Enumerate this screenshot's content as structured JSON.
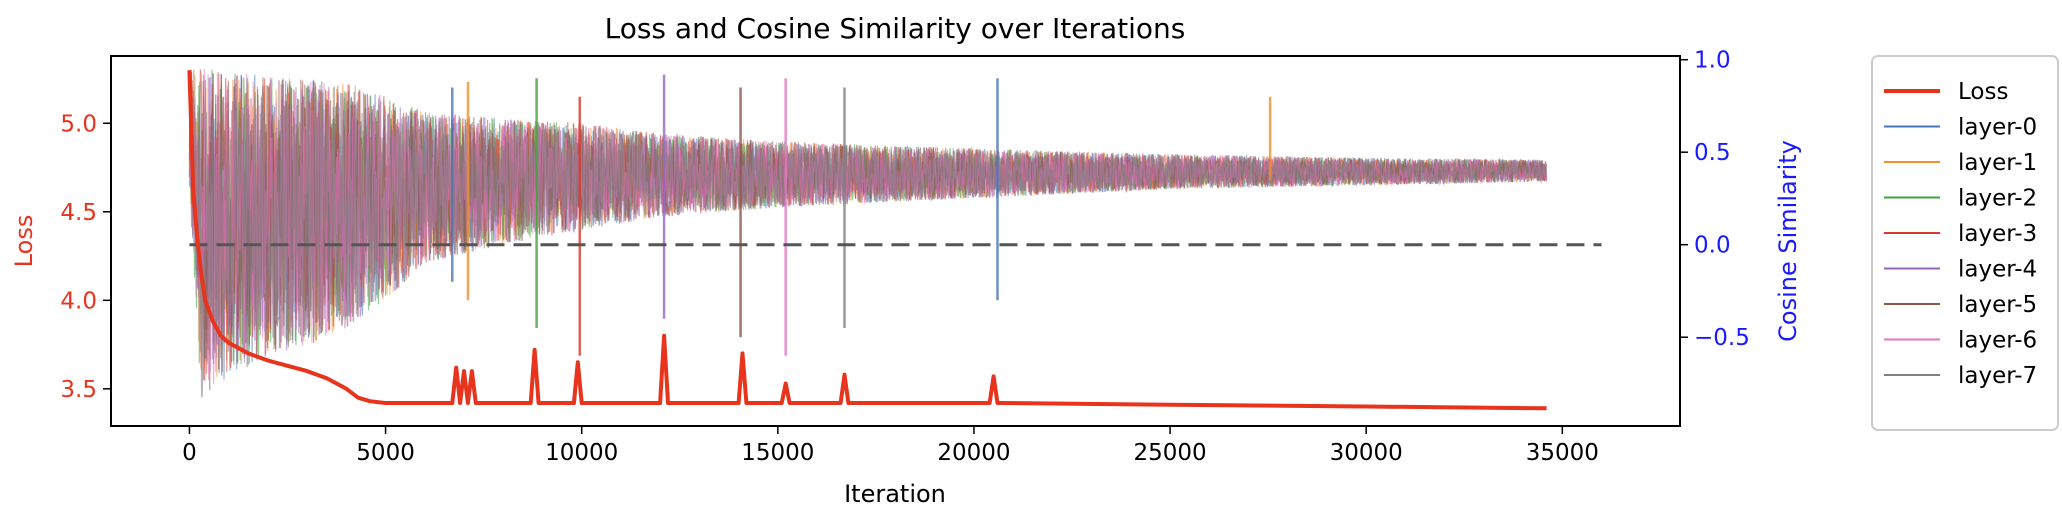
{
  "chart_data": {
    "type": "line",
    "title": "Loss and Cosine Similarity over Iterations",
    "xlabel": "Iteration",
    "ylabel_left": "Loss",
    "ylabel_right": "Cosine Similarity",
    "xlim": [
      -2000,
      38000
    ],
    "ylim_left": [
      3.29,
      5.38
    ],
    "ylim_right": [
      -0.98,
      1.02
    ],
    "x_ticks": [
      0,
      5000,
      10000,
      15000,
      20000,
      25000,
      30000,
      35000
    ],
    "x_tick_labels": [
      "0",
      "5000",
      "10000",
      "15000",
      "20000",
      "25000",
      "30000",
      "35000"
    ],
    "y_left_ticks": [
      3.5,
      4.0,
      4.5,
      5.0
    ],
    "y_left_tick_labels": [
      "3.5",
      "4.0",
      "4.5",
      "5.0"
    ],
    "y_right_ticks": [
      -0.5,
      0.0,
      0.5,
      1.0
    ],
    "y_right_tick_labels": [
      "−0.5",
      "0.0",
      "0.5",
      "1.0"
    ],
    "reference_line": {
      "axis": "right",
      "y": 0.0,
      "x_range": [
        0,
        36000
      ],
      "style": "dashed",
      "color": "#555555"
    },
    "legend_position": "outside-right",
    "series": [
      {
        "name": "Loss",
        "axis": "left",
        "color": "#e8341c",
        "x": [
          0,
          100,
          200,
          300,
          400,
          600,
          800,
          1000,
          1500,
          2000,
          2500,
          3000,
          3500,
          4000,
          4300,
          4600,
          5000,
          6000,
          6700,
          6800,
          6900,
          7000,
          7100,
          7200,
          7300,
          8000,
          8700,
          8800,
          8900,
          9000,
          9800,
          9900,
          10000,
          10100,
          12000,
          12100,
          12200,
          12300,
          14000,
          14100,
          14200,
          14300,
          15100,
          15200,
          15300,
          16600,
          16700,
          16800,
          20400,
          20500,
          20600,
          20700,
          25000,
          30000,
          34600
        ],
        "values": [
          5.3,
          4.6,
          4.35,
          4.15,
          4.0,
          3.88,
          3.8,
          3.76,
          3.7,
          3.66,
          3.63,
          3.6,
          3.56,
          3.5,
          3.45,
          3.43,
          3.42,
          3.42,
          3.42,
          3.62,
          3.42,
          3.6,
          3.42,
          3.6,
          3.42,
          3.42,
          3.42,
          3.72,
          3.42,
          3.42,
          3.42,
          3.65,
          3.42,
          3.42,
          3.42,
          3.8,
          3.42,
          3.42,
          3.42,
          3.7,
          3.42,
          3.42,
          3.42,
          3.53,
          3.42,
          3.42,
          3.58,
          3.42,
          3.42,
          3.57,
          3.42,
          3.42,
          3.41,
          3.4,
          3.39
        ]
      },
      {
        "name": "layer-0",
        "axis": "right",
        "color": "#4a76b7",
        "x": [
          0,
          300,
          600,
          1000,
          2000,
          3000,
          4000,
          5000,
          7000,
          8800,
          10000,
          12000,
          14000,
          15000,
          17000,
          20000,
          22000,
          25000,
          28000,
          30000,
          32000,
          34600
        ],
        "values": [
          0.9,
          -0.2,
          0.2,
          0.6,
          0.4,
          0.45,
          0.5,
          0.3,
          0.45,
          0.6,
          0.3,
          0.4,
          0.5,
          0.35,
          0.45,
          0.5,
          0.4,
          0.45,
          0.4,
          0.42,
          0.38,
          0.4
        ]
      },
      {
        "name": "layer-1",
        "axis": "right",
        "color": "#f28e2b",
        "x": [
          0,
          34600
        ],
        "values": [
          0.5,
          0.4
        ]
      },
      {
        "name": "layer-2",
        "axis": "right",
        "color": "#3ea53e",
        "x": [
          0,
          34600
        ],
        "values": [
          0.5,
          0.4
        ]
      },
      {
        "name": "layer-3",
        "axis": "right",
        "color": "#d6392e",
        "x": [
          0,
          34600
        ],
        "values": [
          0.5,
          0.4
        ]
      },
      {
        "name": "layer-4",
        "axis": "right",
        "color": "#9467bd",
        "x": [
          0,
          34600
        ],
        "values": [
          0.5,
          0.4
        ]
      },
      {
        "name": "layer-5",
        "axis": "right",
        "color": "#8c564b",
        "x": [
          0,
          34600
        ],
        "values": [
          0.5,
          0.4
        ]
      },
      {
        "name": "layer-6",
        "axis": "right",
        "color": "#e377c2",
        "x": [
          0,
          34600
        ],
        "values": [
          0.5,
          0.4
        ]
      },
      {
        "name": "layer-7",
        "axis": "right",
        "color": "#808080",
        "x": [
          0,
          34600
        ],
        "values": [
          0.5,
          0.4
        ]
      }
    ],
    "cosine_band_envelope": {
      "x": [
        0,
        300,
        500,
        1000,
        2000,
        3000,
        4000,
        5000,
        6000,
        8000,
        10000,
        12000,
        15000,
        20000,
        25000,
        30000,
        34600
      ],
      "upper": [
        0.95,
        0.95,
        0.95,
        0.93,
        0.92,
        0.9,
        0.88,
        0.8,
        0.72,
        0.68,
        0.66,
        0.6,
        0.56,
        0.52,
        0.49,
        0.47,
        0.46
      ],
      "lower": [
        0.3,
        -0.85,
        -0.8,
        -0.72,
        -0.6,
        -0.55,
        -0.45,
        -0.3,
        -0.1,
        0.0,
        0.08,
        0.15,
        0.2,
        0.25,
        0.3,
        0.32,
        0.34
      ]
    },
    "cosine_spikes": [
      {
        "x": 6700,
        "upper": 0.85,
        "lower": -0.2
      },
      {
        "x": 7100,
        "upper": 0.88,
        "lower": -0.3
      },
      {
        "x": 8850,
        "upper": 0.9,
        "lower": -0.45
      },
      {
        "x": 9950,
        "upper": 0.8,
        "lower": -0.6
      },
      {
        "x": 12100,
        "upper": 0.92,
        "lower": -0.4
      },
      {
        "x": 14050,
        "upper": 0.85,
        "lower": -0.5
      },
      {
        "x": 15200,
        "upper": 0.9,
        "lower": -0.6
      },
      {
        "x": 16700,
        "upper": 0.85,
        "lower": -0.45
      },
      {
        "x": 20600,
        "upper": 0.9,
        "lower": -0.3
      },
      {
        "x": 27550,
        "upper": 0.8,
        "lower": 0.35
      }
    ]
  }
}
